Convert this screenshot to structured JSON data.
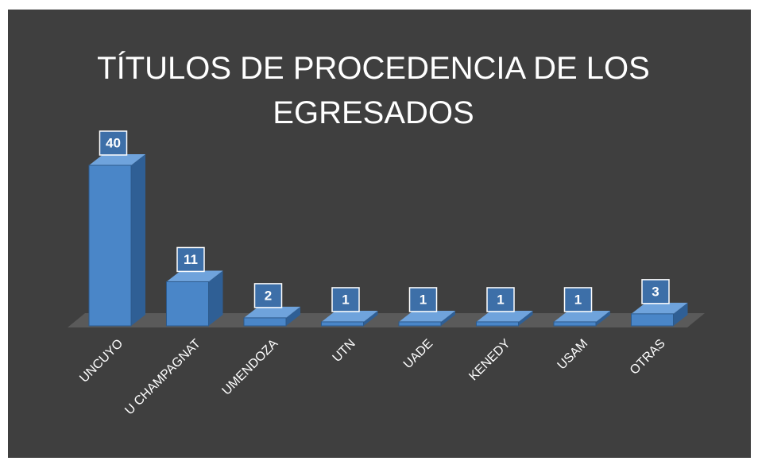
{
  "chart_data": {
    "type": "bar",
    "title": "TÍTULOS DE PROCEDENCIA DE LOS EGRESADOS",
    "categories": [
      "UNCUYO",
      "U CHAMPAGNAT",
      "UMENDOZA",
      "UTN",
      "UADE",
      "KENEDY",
      "USAM",
      "OTRAS"
    ],
    "values": [
      40,
      11,
      2,
      1,
      1,
      1,
      1,
      3
    ],
    "color": "#4a86c8"
  }
}
